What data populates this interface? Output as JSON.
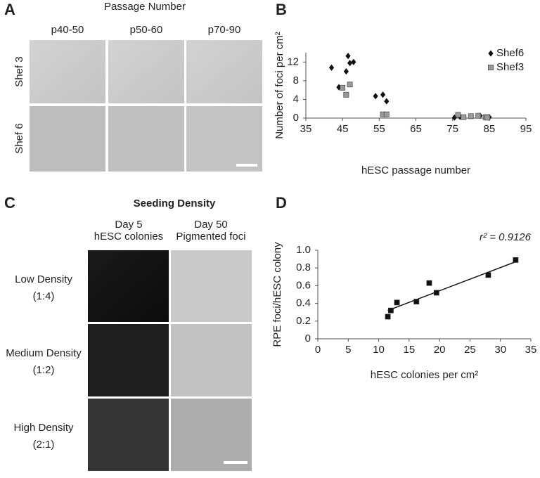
{
  "panels": {
    "a": {
      "label": "A",
      "title": "Passage Number",
      "columns": [
        "p40-50",
        "p50-60",
        "p70-90"
      ],
      "rows": [
        "Shef 3",
        "Shef 6"
      ]
    },
    "b": {
      "label": "B"
    },
    "c": {
      "label": "C",
      "title": "Seeding Density",
      "columns": [
        [
          "Day 5",
          "hESC colonies"
        ],
        [
          "Day 50",
          "Pigmented foci"
        ]
      ],
      "rows": [
        [
          "Low Density",
          "(1:4)"
        ],
        [
          "Medium Density",
          "(1:2)"
        ],
        [
          "High Density",
          "(2:1)"
        ]
      ]
    },
    "d": {
      "label": "D"
    }
  },
  "chart_data": [
    {
      "type": "scatter",
      "ylabel": "Number of foci per cm²",
      "xlabel": "hESC passage number",
      "xlim": [
        35,
        95
      ],
      "xticks": [
        35,
        45,
        55,
        65,
        75,
        85,
        95
      ],
      "ylim": [
        0,
        14
      ],
      "yticks": [
        0,
        4,
        8,
        12
      ],
      "legend": "upper right",
      "series": [
        {
          "name": "Shef6",
          "color": "#111111",
          "marker": "diamond",
          "x": [
            42,
            44,
            46,
            46.5,
            47,
            48,
            54,
            56,
            57,
            75.5,
            77,
            82.5,
            85
          ],
          "values": [
            10.8,
            6.6,
            10,
            13.3,
            11.8,
            12,
            4.7,
            5,
            3.6,
            0.1,
            0.3,
            0.5,
            0.2
          ]
        },
        {
          "name": "Shef3",
          "color": "#9a9a9a",
          "marker": "square",
          "x": [
            45,
            46,
            47,
            56,
            57,
            76.5,
            78,
            80,
            82,
            84,
            84.5
          ],
          "values": [
            6.5,
            5,
            7.2,
            0.8,
            0.8,
            0.7,
            0.2,
            0.4,
            0.5,
            0.2,
            0.1
          ]
        }
      ]
    },
    {
      "type": "scatter",
      "ylabel": "RPE foci/hESC colony",
      "xlabel": "hESC colonies per cm²",
      "annotation": "r² = 0.9126",
      "xlim": [
        0,
        35
      ],
      "xticks": [
        0,
        5,
        10,
        15,
        20,
        25,
        30,
        35
      ],
      "ylim": [
        0,
        1
      ],
      "yticks": [
        0,
        0.2,
        0.4,
        0.6,
        0.8,
        {
          "value": 1,
          "label": "1.0"
        }
      ],
      "series": [
        {
          "color": "#111111",
          "marker": "square",
          "x": [
            11.5,
            12,
            13,
            16.2,
            18.3,
            19.5,
            28,
            32.5
          ],
          "values": [
            0.25,
            0.32,
            0.41,
            0.42,
            0.63,
            0.52,
            0.72,
            0.89
          ]
        }
      ],
      "trendline": {
        "x": [
          11.5,
          32.5
        ],
        "values": [
          0.32,
          0.87
        ]
      }
    }
  ]
}
